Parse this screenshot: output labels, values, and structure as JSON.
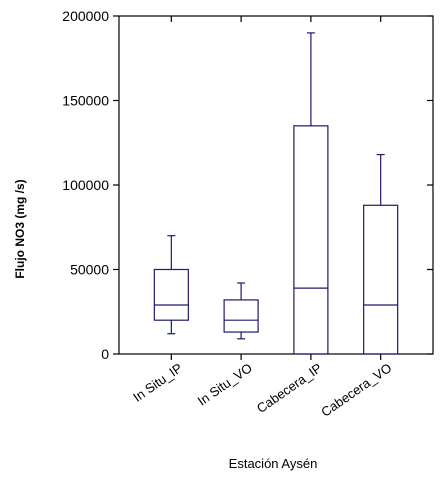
{
  "chart_data": {
    "type": "boxplot",
    "title": "",
    "xlabel": "Estación Aysén",
    "ylabel": "Flujo NO3 (mg /s)",
    "ylim": [
      0,
      200000
    ],
    "yticks": [
      0,
      50000,
      100000,
      150000,
      200000
    ],
    "ytick_labels": [
      "0",
      "50000",
      "100000",
      "150000",
      "200000"
    ],
    "categories": [
      "In Situ_IP",
      "In Situ_VO",
      "Cabecera_IP",
      "Cabecera_VO"
    ],
    "boxes": [
      {
        "category": "In Situ_IP",
        "whisker_low": 12000,
        "q1": 20000,
        "median": 29000,
        "q3": 50000,
        "whisker_high": 70000
      },
      {
        "category": "In Situ_VO",
        "whisker_low": 9000,
        "q1": 13000,
        "median": 20000,
        "q3": 32000,
        "whisker_high": 42000
      },
      {
        "category": "Cabecera_IP",
        "whisker_low": 0,
        "q1": 0,
        "median": 39000,
        "q3": 135000,
        "whisker_high": 190000
      },
      {
        "category": "Cabecera_VO",
        "whisker_low": 0,
        "q1": 0,
        "median": 29000,
        "q3": 88000,
        "whisker_high": 118000
      }
    ],
    "grid": false,
    "legend": "none",
    "colors": {
      "box_stroke": "#1a1a6e",
      "axis": "#000000"
    }
  }
}
